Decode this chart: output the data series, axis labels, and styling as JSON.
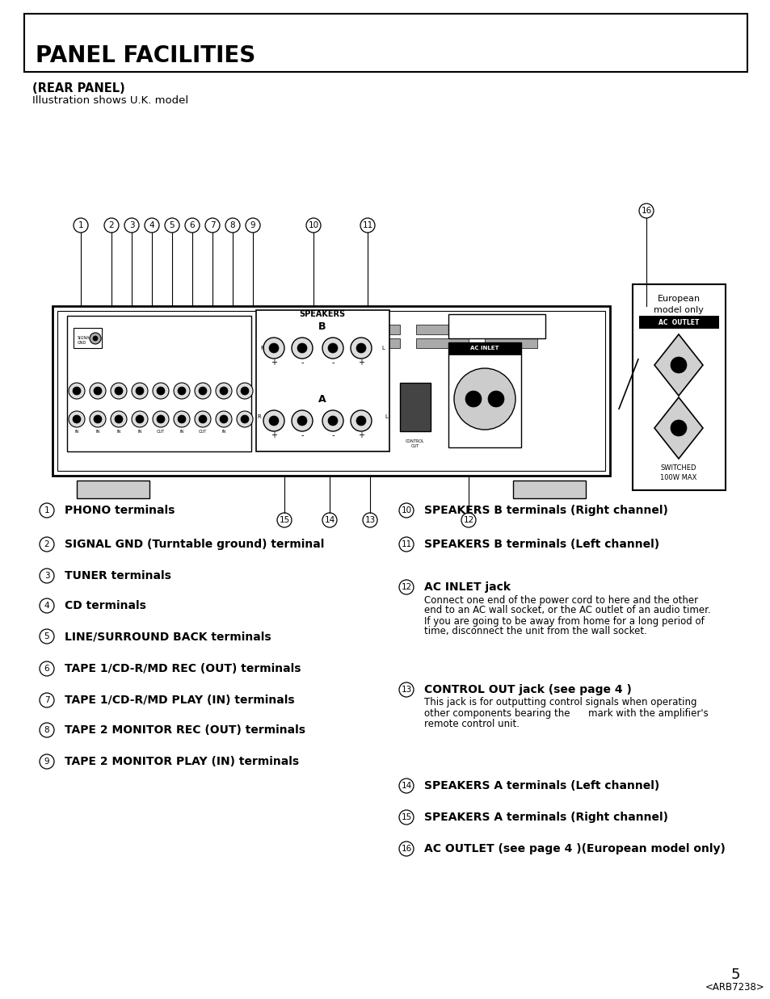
{
  "title": "PANEL FACILITIES",
  "subtitle": "(REAR PANEL)",
  "subtitle2": "Illustration shows U.K. model",
  "page_number": "5",
  "page_code": "<ARB7238>",
  "left_items": [
    {
      "num": "1",
      "bold": "PHONO terminals",
      "desc": ""
    },
    {
      "num": "2",
      "bold": "SIGNAL GND (Turntable ground) terminal",
      "desc": ""
    },
    {
      "num": "3",
      "bold": "TUNER terminals",
      "desc": ""
    },
    {
      "num": "4",
      "bold": "CD terminals",
      "desc": ""
    },
    {
      "num": "5",
      "bold": "LINE/SURROUND BACK terminals",
      "desc": ""
    },
    {
      "num": "6",
      "bold": "TAPE 1/CD-R/MD REC (OUT) terminals",
      "desc": ""
    },
    {
      "num": "7",
      "bold": "TAPE 1/CD-R/MD PLAY (IN) terminals",
      "desc": ""
    },
    {
      "num": "8",
      "bold": "TAPE 2 MONITOR REC (OUT) terminals",
      "desc": ""
    },
    {
      "num": "9",
      "bold": "TAPE 2 MONITOR PLAY (IN) terminals",
      "desc": ""
    }
  ],
  "right_items": [
    {
      "num": "10",
      "bold": "SPEAKERS B terminals (Right channel)",
      "desc": ""
    },
    {
      "num": "11",
      "bold": "SPEAKERS B terminals (Left channel)",
      "desc": ""
    },
    {
      "num": "12",
      "bold": "AC INLET jack",
      "desc": "Connect one end of the power cord to here and the other\nend to an AC wall socket, or the AC outlet of an audio timer.\nIf you are going to be away from home for a long period of\ntime, disconnect the unit from the wall socket."
    },
    {
      "num": "13",
      "bold": "CONTROL OUT jack (see page 4 )",
      "desc": "This jack is for outputting control signals when operating\nother components bearing the      mark with the amplifier's\nremote control unit."
    },
    {
      "num": "14",
      "bold": "SPEAKERS A terminals (Left channel)",
      "desc": ""
    },
    {
      "num": "15",
      "bold": "SPEAKERS A terminals (Right channel)",
      "desc": ""
    },
    {
      "num": "16",
      "bold": "AC OUTLET (see page 4 )(European model only)",
      "desc": ""
    }
  ],
  "bg_color": "#ffffff",
  "text_color": "#000000"
}
